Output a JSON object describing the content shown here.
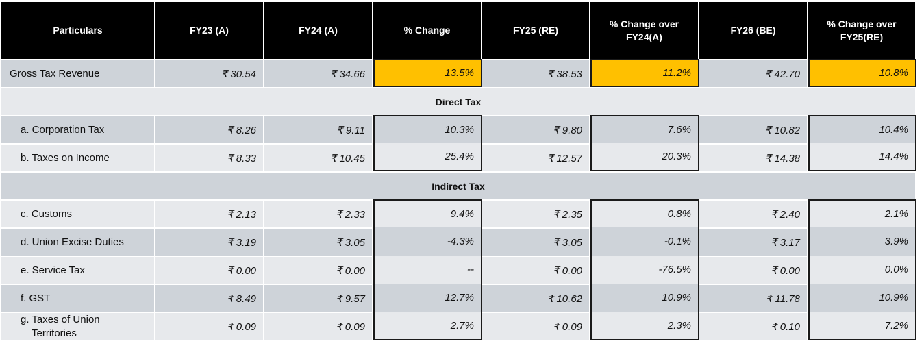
{
  "headers": [
    "Particulars",
    "FY23 (A)",
    "FY24 (A)",
    "% Change",
    "FY25 (RE)",
    "% Change over FY24(A)",
    "FY26 (BE)",
    "% Change over FY25(RE)"
  ],
  "gross": {
    "label": "Gross Tax Revenue",
    "values": [
      "₹ 30.54",
      "₹ 34.66",
      "13.5%",
      "₹ 38.53",
      "11.2%",
      "₹ 42.70",
      "10.8%"
    ]
  },
  "sections": {
    "direct": "Direct Tax",
    "indirect": "Indirect Tax"
  },
  "direct_rows": [
    {
      "label": "a. Corporation Tax",
      "values": [
        "₹ 8.26",
        "₹ 9.11",
        "10.3%",
        "₹ 9.80",
        "7.6%",
        "₹ 10.82",
        "10.4%"
      ]
    },
    {
      "label": "b. Taxes on Income",
      "values": [
        "₹ 8.33",
        "₹ 10.45",
        "25.4%",
        "₹ 12.57",
        "20.3%",
        "₹ 14.38",
        "14.4%"
      ]
    }
  ],
  "indirect_rows": [
    {
      "label": "c. Customs",
      "values": [
        "₹ 2.13",
        "₹ 2.33",
        "9.4%",
        "₹ 2.35",
        "0.8%",
        "₹ 2.40",
        "2.1%"
      ]
    },
    {
      "label": "d. Union Excise Duties",
      "values": [
        "₹ 3.19",
        "₹ 3.05",
        "-4.3%",
        "₹ 3.05",
        "-0.1%",
        "₹ 3.17",
        "3.9%"
      ]
    },
    {
      "label": "e. Service Tax",
      "values": [
        "₹ 0.00",
        "₹ 0.00",
        "--",
        "₹ 0.00",
        "-76.5%",
        "₹ 0.00",
        "0.0%"
      ]
    },
    {
      "label": "f. GST",
      "values": [
        "₹ 8.49",
        "₹ 9.57",
        "12.7%",
        "₹ 10.62",
        "10.9%",
        "₹ 11.78",
        "10.9%"
      ]
    },
    {
      "label_line1": "g. Taxes of Union",
      "label_line2": "Territories",
      "values": [
        "₹ 0.09",
        "₹ 0.09",
        "2.7%",
        "₹ 0.09",
        "2.3%",
        "₹ 0.10",
        "7.2%"
      ]
    }
  ],
  "colors": {
    "header_bg": "#000000",
    "highlight": "#ffc000",
    "row_dark": "#ced3d9",
    "row_light": "#e7e9ec"
  }
}
